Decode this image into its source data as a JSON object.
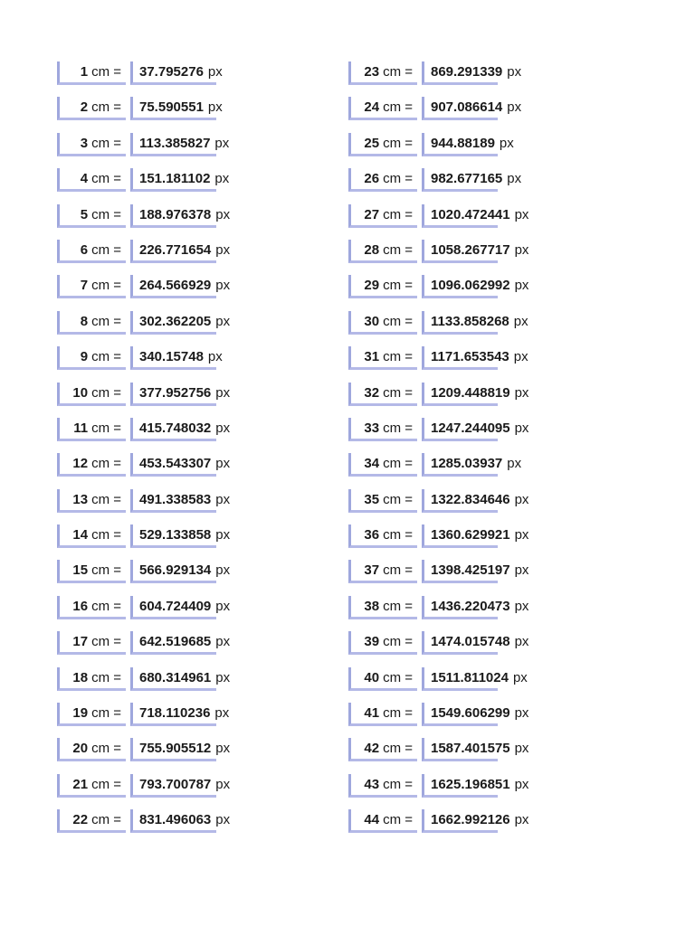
{
  "conversion_table": {
    "cm_unit_suffix": "cm =",
    "px_unit_suffix": "px",
    "columns": [
      {
        "rows": [
          {
            "cm": "1",
            "px": "37.795276"
          },
          {
            "cm": "2",
            "px": "75.590551"
          },
          {
            "cm": "3",
            "px": "113.385827"
          },
          {
            "cm": "4",
            "px": "151.181102"
          },
          {
            "cm": "5",
            "px": "188.976378"
          },
          {
            "cm": "6",
            "px": "226.771654"
          },
          {
            "cm": "7",
            "px": "264.566929"
          },
          {
            "cm": "8",
            "px": "302.362205"
          },
          {
            "cm": "9",
            "px": "340.15748"
          },
          {
            "cm": "10",
            "px": "377.952756"
          },
          {
            "cm": "11",
            "px": "415.748032"
          },
          {
            "cm": "12",
            "px": "453.543307"
          },
          {
            "cm": "13",
            "px": "491.338583"
          },
          {
            "cm": "14",
            "px": "529.133858"
          },
          {
            "cm": "15",
            "px": "566.929134"
          },
          {
            "cm": "16",
            "px": "604.724409"
          },
          {
            "cm": "17",
            "px": "642.519685"
          },
          {
            "cm": "18",
            "px": "680.314961"
          },
          {
            "cm": "19",
            "px": "718.110236"
          },
          {
            "cm": "20",
            "px": "755.905512"
          },
          {
            "cm": "21",
            "px": "793.700787"
          },
          {
            "cm": "22",
            "px": "831.496063"
          }
        ]
      },
      {
        "rows": [
          {
            "cm": "23",
            "px": "869.291339"
          },
          {
            "cm": "24",
            "px": "907.086614"
          },
          {
            "cm": "25",
            "px": "944.88189"
          },
          {
            "cm": "26",
            "px": "982.677165"
          },
          {
            "cm": "27",
            "px": "1020.472441"
          },
          {
            "cm": "28",
            "px": "1058.267717"
          },
          {
            "cm": "29",
            "px": "1096.062992"
          },
          {
            "cm": "30",
            "px": "1133.858268"
          },
          {
            "cm": "31",
            "px": "1171.653543"
          },
          {
            "cm": "32",
            "px": "1209.448819"
          },
          {
            "cm": "33",
            "px": "1247.244095"
          },
          {
            "cm": "34",
            "px": "1285.03937"
          },
          {
            "cm": "35",
            "px": "1322.834646"
          },
          {
            "cm": "36",
            "px": "1360.629921"
          },
          {
            "cm": "37",
            "px": "1398.425197"
          },
          {
            "cm": "38",
            "px": "1436.220473"
          },
          {
            "cm": "39",
            "px": "1474.015748"
          },
          {
            "cm": "40",
            "px": "1511.811024"
          },
          {
            "cm": "41",
            "px": "1549.606299"
          },
          {
            "cm": "42",
            "px": "1587.401575"
          },
          {
            "cm": "43",
            "px": "1625.196851"
          },
          {
            "cm": "44",
            "px": "1662.992126"
          }
        ]
      }
    ]
  },
  "colors": {
    "border_left": "#9fa7dd",
    "border_bottom": "#b4b9e7",
    "text": "#1a1a1a",
    "background": "#ffffff"
  }
}
